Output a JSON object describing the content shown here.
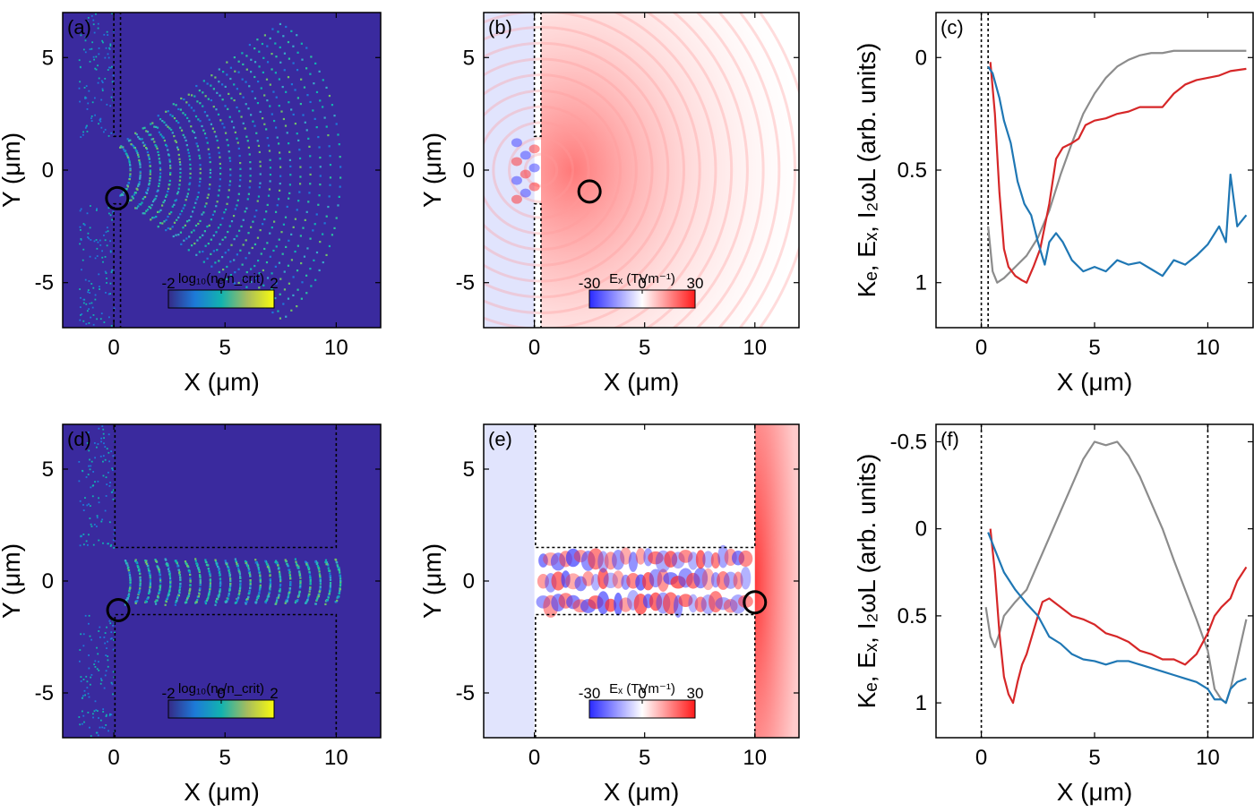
{
  "colors": {
    "background_density": "#3a2a9e",
    "density_high": "#fbc42e",
    "electron_energy": "#d62728",
    "field_ex": "#8c8c8c",
    "harmonic_intensity": "#1f77b4",
    "field_positive": "#ff2a2a",
    "field_negative": "#3a3aff"
  },
  "chart_data": [
    {
      "id": "a",
      "type": "heatmap",
      "panel_label": "(a)",
      "xlabel": "X (μm)",
      "ylabel": "Y (μm)",
      "xlim": [
        -2.3,
        12
      ],
      "ylim": [
        7,
        -7
      ],
      "xticks": [
        "0",
        "5",
        "10"
      ],
      "yticks": [
        "-5",
        "0",
        "5"
      ],
      "colorbar": {
        "title": "log₁₀(nₑ/n_crit)",
        "ticks": [
          "-2",
          "0",
          "2"
        ],
        "range": [
          -2,
          2
        ],
        "colormap": "parula"
      },
      "channel": {
        "x_end": 0.3,
        "half_width": 1.5
      },
      "circle": {
        "x": 0.15,
        "y": -1.25
      }
    },
    {
      "id": "b",
      "type": "heatmap",
      "panel_label": "(b)",
      "xlabel": "X (μm)",
      "ylabel": "Y (μm)",
      "xlim": [
        -2.3,
        12
      ],
      "ylim": [
        7,
        -7
      ],
      "xticks": [
        "0",
        "5",
        "10"
      ],
      "yticks": [
        "-5",
        "0",
        "5"
      ],
      "colorbar": {
        "title": "Eₓ (TVm⁻¹)",
        "ticks": [
          "-30",
          "0",
          "30"
        ],
        "range": [
          -30,
          30
        ],
        "colormap": "bwr"
      },
      "channel": {
        "x_end": 0.3,
        "half_width": 1.5
      },
      "circle": {
        "x": 2.5,
        "y": -0.95
      }
    },
    {
      "id": "c",
      "type": "line",
      "panel_label": "(c)",
      "xlabel": "X (μm)",
      "ylabel": "Kₑ, Eₓ, I₂ωL (arb. units)",
      "xlim": [
        -2,
        12
      ],
      "ylim": [
        -0.2,
        1.2
      ],
      "xticks": [
        "0",
        "5",
        "10"
      ],
      "yticks": [
        "0",
        "0.5",
        "1"
      ],
      "vlines": [
        0,
        0.3
      ],
      "series": [
        {
          "color_key": "field_ex",
          "x": [
            0.3,
            0.5,
            0.7,
            1.0,
            1.5,
            2.0,
            2.5,
            3.0,
            3.5,
            4.0,
            4.5,
            5.0,
            5.5,
            6.0,
            6.5,
            7.0,
            7.5,
            8.0,
            8.5,
            9.0,
            9.5,
            10.0,
            10.5,
            11.0,
            11.7
          ],
          "y": [
            0.75,
            0.95,
            1.0,
            0.98,
            0.93,
            0.88,
            0.8,
            0.68,
            0.52,
            0.38,
            0.25,
            0.16,
            0.09,
            0.04,
            0.01,
            -0.01,
            -0.02,
            -0.02,
            -0.03,
            -0.03,
            -0.03,
            -0.03,
            -0.03,
            -0.03,
            -0.03
          ]
        },
        {
          "color_key": "electron_energy",
          "x": [
            0.4,
            0.6,
            0.8,
            1.0,
            1.2,
            1.5,
            1.8,
            2.0,
            2.3,
            2.6,
            3.0,
            3.3,
            3.6,
            4.0,
            4.3,
            4.6,
            5.0,
            5.5,
            6.0,
            6.5,
            7.0,
            7.5,
            8.0,
            8.5,
            9.0,
            9.5,
            10.0,
            10.5,
            11.0,
            11.7
          ],
          "y": [
            0.02,
            0.25,
            0.6,
            0.85,
            0.93,
            0.97,
            0.99,
            1.0,
            0.93,
            0.85,
            0.65,
            0.45,
            0.4,
            0.38,
            0.36,
            0.3,
            0.28,
            0.27,
            0.25,
            0.24,
            0.22,
            0.22,
            0.22,
            0.16,
            0.12,
            0.1,
            0.09,
            0.08,
            0.06,
            0.05
          ]
        },
        {
          "color_key": "harmonic_intensity",
          "x": [
            0.3,
            0.5,
            0.8,
            1.0,
            1.3,
            1.6,
            1.9,
            2.2,
            2.5,
            2.8,
            3.0,
            3.3,
            3.6,
            4.0,
            4.5,
            5.0,
            5.5,
            6.0,
            6.5,
            7.0,
            7.5,
            8.0,
            8.5,
            9.0,
            9.5,
            10.0,
            10.5,
            10.8,
            11.0,
            11.3,
            11.7
          ],
          "y": [
            0.04,
            0.07,
            0.18,
            0.28,
            0.38,
            0.55,
            0.65,
            0.7,
            0.82,
            0.92,
            0.82,
            0.78,
            0.82,
            0.9,
            0.95,
            0.93,
            0.95,
            0.9,
            0.92,
            0.91,
            0.94,
            0.97,
            0.9,
            0.92,
            0.88,
            0.83,
            0.75,
            0.82,
            0.52,
            0.75,
            0.7
          ]
        }
      ]
    },
    {
      "id": "d",
      "type": "heatmap",
      "panel_label": "(d)",
      "xlabel": "X (μm)",
      "ylabel": "Y (μm)",
      "xlim": [
        -2.3,
        12
      ],
      "ylim": [
        7,
        -7
      ],
      "xticks": [
        "0",
        "5",
        "10"
      ],
      "yticks": [
        "-5",
        "0",
        "5"
      ],
      "colorbar": {
        "title": "log₁₀(nₑ/n_crit)",
        "ticks": [
          "-2",
          "0",
          "2"
        ],
        "range": [
          -2,
          2
        ],
        "colormap": "parula"
      },
      "channel": {
        "x_end": 10,
        "half_width": 1.5
      },
      "circle": {
        "x": 0.2,
        "y": -1.3
      }
    },
    {
      "id": "e",
      "type": "heatmap",
      "panel_label": "(e)",
      "xlabel": "X (μm)",
      "ylabel": "Y (μm)",
      "xlim": [
        -2.3,
        12
      ],
      "ylim": [
        7,
        -7
      ],
      "xticks": [
        "0",
        "5",
        "10"
      ],
      "yticks": [
        "-5",
        "0",
        "5"
      ],
      "colorbar": {
        "title": "Eₓ (TVm⁻¹)",
        "ticks": [
          "-30",
          "0",
          "30"
        ],
        "range": [
          -30,
          30
        ],
        "colormap": "bwr"
      },
      "channel": {
        "x_end": 10,
        "half_width": 1.5
      },
      "circle": {
        "x": 10,
        "y": -0.95
      }
    },
    {
      "id": "f",
      "type": "line",
      "panel_label": "(f)",
      "xlabel": "X (μm)",
      "ylabel": "Kₑ, Eₓ, I₂ωL (arb. units)",
      "xlim": [
        -2,
        12
      ],
      "ylim": [
        -0.6,
        1.2
      ],
      "xticks": [
        "0",
        "5",
        "10"
      ],
      "yticks": [
        "-0.5",
        "0",
        "0.5",
        "1"
      ],
      "vlines": [
        0,
        10
      ],
      "series": [
        {
          "color_key": "field_ex",
          "x": [
            0.2,
            0.4,
            0.6,
            0.8,
            1.0,
            1.5,
            2.0,
            2.5,
            3.0,
            3.5,
            4.0,
            4.5,
            5.0,
            5.5,
            6.0,
            6.5,
            7.0,
            7.5,
            8.0,
            8.5,
            9.0,
            9.5,
            10.0,
            10.3,
            10.6,
            10.8,
            11.0,
            11.3,
            11.7
          ],
          "y": [
            0.45,
            0.62,
            0.68,
            0.6,
            0.5,
            0.42,
            0.35,
            0.2,
            0.05,
            -0.1,
            -0.25,
            -0.4,
            -0.5,
            -0.48,
            -0.5,
            -0.42,
            -0.3,
            -0.15,
            0.0,
            0.18,
            0.35,
            0.52,
            0.7,
            0.92,
            0.98,
            1.0,
            0.92,
            0.75,
            0.52
          ]
        },
        {
          "color_key": "electron_energy",
          "x": [
            0.4,
            0.6,
            0.8,
            1.0,
            1.2,
            1.4,
            1.6,
            1.8,
            2.0,
            2.5,
            2.7,
            3.0,
            3.5,
            4.0,
            4.5,
            5.0,
            5.5,
            6.0,
            6.5,
            7.0,
            7.5,
            8.0,
            8.5,
            9.0,
            9.5,
            10.0,
            10.3,
            10.6,
            11.0,
            11.3,
            11.7
          ],
          "y": [
            0.0,
            0.25,
            0.6,
            0.85,
            0.95,
            1.0,
            0.88,
            0.78,
            0.72,
            0.5,
            0.42,
            0.4,
            0.45,
            0.5,
            0.52,
            0.55,
            0.6,
            0.62,
            0.65,
            0.7,
            0.72,
            0.75,
            0.75,
            0.78,
            0.72,
            0.6,
            0.5,
            0.45,
            0.4,
            0.3,
            0.22
          ]
        },
        {
          "color_key": "harmonic_intensity",
          "x": [
            0.3,
            0.6,
            1.0,
            1.5,
            2.0,
            2.5,
            3.0,
            3.5,
            4.0,
            4.5,
            5.0,
            5.5,
            6.0,
            6.5,
            7.0,
            7.5,
            8.0,
            8.5,
            9.0,
            9.5,
            10.0,
            10.3,
            10.6,
            10.8,
            11.0,
            11.3,
            11.7
          ],
          "y": [
            0.02,
            0.12,
            0.25,
            0.35,
            0.43,
            0.5,
            0.62,
            0.66,
            0.72,
            0.75,
            0.76,
            0.78,
            0.76,
            0.76,
            0.78,
            0.8,
            0.82,
            0.84,
            0.86,
            0.88,
            0.92,
            0.98,
            0.98,
            1.0,
            0.92,
            0.88,
            0.86
          ]
        }
      ]
    }
  ]
}
